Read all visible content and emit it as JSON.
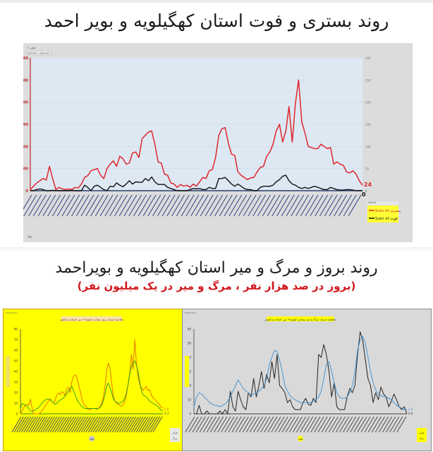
{
  "section1": {
    "title": "روند بستری و فوت استان کهگیلویه و بویر احمد",
    "corner_labels": [
      "فیلتر ۲",
      "Sum of ... Sum of ..."
    ],
    "footer_label": "Tab"
  },
  "section2": {
    "title": "روند بروز و مرگ و میر استان کهگیلویه و بویراحمد",
    "subtitle": "(بروز در صد هزار نفر ، مرگ و میر در یک میلیون نفر)"
  },
  "colors": {
    "hospitalized": "#e0262b",
    "deaths": "#111111",
    "plot_bg": "#dde8f3",
    "panel_bg": "#dcdcdc",
    "yellow_panel": "#ffff00",
    "orange_line": "#e07800",
    "green_line": "#3aa020",
    "blue_line": "#4a96d2",
    "dark_line": "#222222"
  },
  "chart_data": [
    {
      "type": "line",
      "title": "روند بستری و فوت استان کهگیلویه و بویر احمد",
      "xlabel": "هفته",
      "ylabel": "",
      "ylim": [
        0,
        600
      ],
      "y_ticks": [
        0,
        100,
        200,
        300,
        400,
        500,
        600
      ],
      "y2lim": [
        0,
        300
      ],
      "y2_ticks": [
        0,
        50,
        100,
        150,
        200,
        250,
        300
      ],
      "grid": true,
      "legend_position": "right-bottom",
      "legend_title": "Values",
      "x_tick_sample": [
        "هفته ۵۱ سال ۱۳۹۸",
        "هفته ۵۲ سال ۱۳۹۸",
        "هفته ۱ سال ۹۹",
        "...",
        "هفته ۱ سال ۱۴۰۰",
        "...",
        "هفته ۶ سال ۱۴۰۱"
      ],
      "end_labels": {
        "hospitalized": "24",
        "deaths": "0"
      },
      "series": [
        {
          "name": "Sum of بستری",
          "color": "#e0262b",
          "values": [
            5,
            20,
            35,
            45,
            55,
            48,
            110,
            55,
            5,
            15,
            8,
            5,
            8,
            5,
            15,
            12,
            30,
            60,
            68,
            90,
            95,
            100,
            70,
            55,
            100,
            120,
            135,
            110,
            155,
            145,
            120,
            125,
            170,
            175,
            150,
            235,
            250,
            265,
            270,
            210,
            130,
            125,
            75,
            70,
            35,
            30,
            15,
            28,
            20,
            25,
            15,
            30,
            20,
            40,
            60,
            55,
            90,
            95,
            150,
            250,
            280,
            285,
            215,
            165,
            160,
            85,
            70,
            60,
            50,
            58,
            60,
            85,
            105,
            110,
            155,
            175,
            210,
            270,
            300,
            220,
            270,
            380,
            220,
            395,
            500,
            310,
            260,
            200,
            195,
            190,
            190,
            210,
            200,
            190,
            195,
            120,
            130,
            120,
            115,
            85,
            80,
            90,
            75,
            45,
            24
          ]
        },
        {
          "name": "Sum of فوت",
          "color": "#111111",
          "values": [
            0,
            0,
            5,
            8,
            5,
            0,
            0,
            2,
            0,
            0,
            0,
            0,
            0,
            2,
            0,
            0,
            0,
            25,
            15,
            0,
            20,
            25,
            15,
            5,
            0,
            20,
            18,
            35,
            25,
            18,
            30,
            45,
            30,
            40,
            38,
            38,
            55,
            45,
            62,
            40,
            28,
            28,
            28,
            15,
            10,
            5,
            0,
            0,
            0,
            0,
            5,
            10,
            8,
            10,
            5,
            5,
            15,
            10,
            10,
            55,
            55,
            60,
            45,
            30,
            20,
            30,
            20,
            10,
            5,
            5,
            0,
            0,
            15,
            20,
            20,
            20,
            25,
            40,
            50,
            65,
            70,
            45,
            30,
            25,
            15,
            10,
            15,
            10,
            15,
            20,
            15,
            10,
            5,
            5,
            15,
            10,
            5,
            3,
            3,
            5,
            5,
            3,
            0,
            0,
            0
          ]
        }
      ]
    },
    {
      "type": "line",
      "title": "مقایسه میزان بروز بیماری کووید۱۹ بین استان و کشور",
      "xlabel": "هفته",
      "ylabel": "بروز در صد هزار",
      "ylim": [
        0,
        80
      ],
      "y_ticks": [
        0,
        10,
        20,
        30,
        40,
        50,
        60,
        70,
        80
      ],
      "grid": false,
      "legend_position": "right-bottom",
      "end_labels": {
        "province": "5.8",
        "country": "2.7"
      },
      "series": [
        {
          "name": "استان",
          "color": "#e07800",
          "values": [
            0,
            3,
            6,
            8,
            9,
            8,
            14,
            6,
            0,
            0,
            0,
            0,
            1,
            3,
            5,
            8,
            10,
            12,
            14,
            12,
            10,
            13,
            18,
            20,
            18,
            21,
            20,
            17,
            24,
            25,
            20,
            30,
            35,
            37,
            35,
            28,
            22,
            15,
            10,
            8,
            6,
            4,
            4,
            5,
            5,
            5,
            4,
            5,
            7,
            10,
            15,
            25,
            40,
            48,
            44,
            30,
            18,
            12,
            10,
            9,
            8,
            7,
            9,
            12,
            18,
            28,
            38,
            56,
            42,
            70,
            48,
            35,
            28,
            25,
            22,
            24,
            26,
            22,
            23,
            18,
            15,
            14,
            12,
            10,
            9,
            6,
            5.8
          ]
        },
        {
          "name": "کشور",
          "color": "#3aa020",
          "values": [
            5,
            10,
            9,
            8,
            7,
            5,
            3,
            2,
            3,
            4,
            5,
            6,
            8,
            10,
            12,
            13,
            14,
            14,
            13,
            12,
            10,
            9,
            10,
            12,
            13,
            14,
            15,
            17,
            19,
            22,
            24,
            26,
            22,
            18,
            14,
            11,
            9,
            7,
            6,
            5,
            5,
            5,
            5,
            5,
            5,
            5,
            5,
            5,
            6,
            8,
            12,
            18,
            26,
            29,
            25,
            20,
            15,
            12,
            11,
            10,
            10,
            11,
            12,
            15,
            20,
            28,
            38,
            45,
            48,
            50,
            46,
            40,
            30,
            22,
            18,
            17,
            16,
            14,
            12,
            11,
            10,
            9,
            8,
            7,
            5,
            3.5,
            2.7
          ]
        }
      ]
    },
    {
      "type": "line",
      "title": "مقایسه میزان مرگ و میر بیماری کووید۱۹ بین استان و کشور",
      "xlabel": "هفته",
      "ylabel": "مرگ و میر در یک میلیون",
      "ylim": [
        0,
        60
      ],
      "y_ticks": [
        0,
        10,
        20,
        30,
        40,
        50,
        60
      ],
      "grid": false,
      "legend_position": "right-bottom",
      "end_labels": {
        "country": "2.8",
        "province": "0.0"
      },
      "series": [
        {
          "name": "استان",
          "color": "#222222",
          "values": [
            0,
            0,
            6,
            0,
            0,
            2,
            0,
            0,
            0,
            0,
            2,
            0,
            3,
            0,
            16,
            5,
            2,
            16,
            10,
            5,
            3,
            15,
            12,
            25,
            12,
            20,
            30,
            18,
            28,
            22,
            37,
            25,
            42,
            20,
            18,
            15,
            8,
            10,
            5,
            3,
            3,
            3,
            8,
            11,
            7,
            6,
            11,
            8,
            42,
            40,
            49,
            42,
            30,
            12,
            22,
            5,
            3,
            3,
            3,
            12,
            18,
            15,
            20,
            42,
            58,
            52,
            38,
            25,
            20,
            8,
            15,
            10,
            19,
            14,
            12,
            5,
            9,
            14,
            10,
            5,
            3,
            5,
            0
          ]
        },
        {
          "name": "کشور",
          "color": "#4a96d2",
          "values": [
            5,
            12,
            15,
            14,
            12,
            10,
            8,
            7,
            6,
            6,
            5,
            6,
            7,
            9,
            12,
            16,
            20,
            24,
            21,
            18,
            16,
            15,
            13,
            14,
            15,
            16,
            18,
            20,
            25,
            35,
            40,
            45,
            44,
            38,
            30,
            20,
            16,
            13,
            11,
            10,
            9,
            8,
            8,
            8,
            8,
            8,
            9,
            10,
            12,
            16,
            25,
            35,
            37,
            30,
            22,
            15,
            12,
            11,
            11,
            12,
            15,
            20,
            30,
            45,
            52,
            55,
            50,
            40,
            30,
            22,
            17,
            14,
            13,
            12,
            12,
            11,
            10,
            8,
            6,
            5,
            4,
            3,
            2.8
          ]
        }
      ]
    }
  ],
  "chart_meta": {
    "chart1": {
      "legend": [
        "Sum of بستری",
        "Sum of فوت"
      ],
      "legend_title": "Values"
    },
    "chart2": {
      "legend": [
        "قرآن",
        "مرگ"
      ],
      "x_axis_badge": "هفته",
      "title": "مقایسه میزان بروز بیماری کووید۱۹ بین استان و کشور"
    },
    "chart3": {
      "legend": [
        "قرآن",
        "مرگ"
      ],
      "x_axis_badge": "هفته",
      "title": "مقایسه میزان مرگ و میر بیماری کووید۱۹ بین استان و کشور"
    }
  }
}
